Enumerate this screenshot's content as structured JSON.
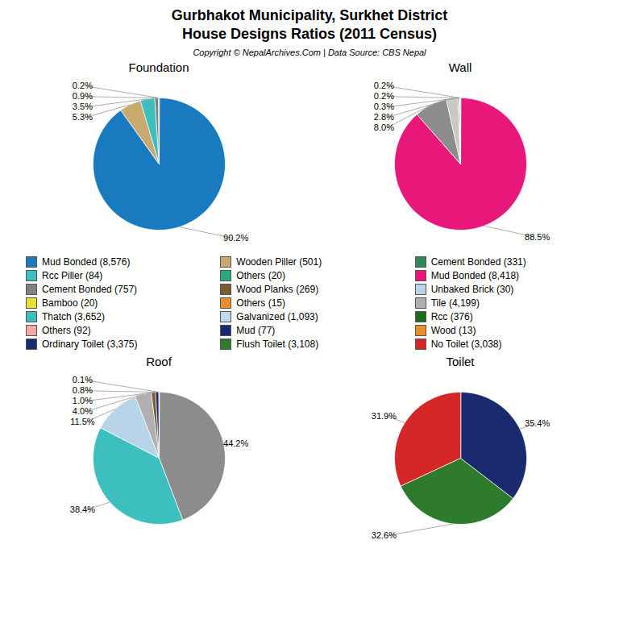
{
  "title": "Gurbhakot Municipality, Surkhet District\nHouse Designs Ratios (2011 Census)",
  "subtitle": "Copyright © NepalArchives.Com | Data Source: CBS Nepal",
  "legend_entries": [
    {
      "label": "Mud Bonded (8,576)",
      "color": "#1a7abf"
    },
    {
      "label": "Wooden Piller (501)",
      "color": "#c8a96e"
    },
    {
      "label": "Cement Bonded (331)",
      "color": "#2e8b57"
    },
    {
      "label": "Rcc Piller (84)",
      "color": "#3dbfbf"
    },
    {
      "label": "Others (20)",
      "color": "#2aaa7a"
    },
    {
      "label": "Mud Bonded (8,418)",
      "color": "#e8177a"
    },
    {
      "label": "Cement Bonded (757)",
      "color": "#808080"
    },
    {
      "label": "Wood Planks (269)",
      "color": "#7b5c2e"
    },
    {
      "label": "Unbaked Brick (30)",
      "color": "#b8d4e8"
    },
    {
      "label": "Bamboo (20)",
      "color": "#e8e030"
    },
    {
      "label": "Others (15)",
      "color": "#e89030"
    },
    {
      "label": "Tile (4,199)",
      "color": "#b0b0b0"
    },
    {
      "label": "Thatch (3,652)",
      "color": "#3dbfbf"
    },
    {
      "label": "Galvanized (1,093)",
      "color": "#c0d8f0"
    },
    {
      "label": "Rcc (376)",
      "color": "#1a6b1a"
    },
    {
      "label": "Others (92)",
      "color": "#f0a8a8"
    },
    {
      "label": "Mud (77)",
      "color": "#1a2a6e"
    },
    {
      "label": "Wood (13)",
      "color": "#e89030"
    },
    {
      "label": "Ordinary Toilet (3,375)",
      "color": "#1a2a6e"
    },
    {
      "label": "Flush Toilet (3,108)",
      "color": "#2e7b2e"
    },
    {
      "label": "No Toilet (3,038)",
      "color": "#d62728"
    }
  ],
  "chart_data": [
    {
      "type": "pie",
      "title": "Foundation",
      "values": [
        90.2,
        5.3,
        3.5,
        0.9,
        0.2
      ],
      "value_labels": [
        "90.2%",
        "5.3%",
        "3.5%",
        "0.9%",
        "0.2%"
      ],
      "colors": [
        "#1a7abf",
        "#c8a96e",
        "#3dbfbf",
        "#808080",
        "#2e8b57"
      ],
      "data_labels": true
    },
    {
      "type": "pie",
      "title": "Wall",
      "values": [
        88.5,
        8.0,
        2.8,
        0.3,
        0.2,
        0.2
      ],
      "value_labels": [
        "88.5%",
        "8.0%",
        "2.8%",
        "0.3%",
        "0.2%",
        "0.2%"
      ],
      "colors": [
        "#e8177a",
        "#8c8c8c",
        "#c8c8c8",
        "#2e8b57",
        "#c8a96e",
        "#3dbfbf"
      ],
      "data_labels": true
    },
    {
      "type": "pie",
      "title": "Roof",
      "values": [
        44.2,
        38.4,
        11.5,
        4.0,
        1.0,
        0.8,
        0.1
      ],
      "value_labels": [
        "44.2%",
        "38.4%",
        "11.5%",
        "4.0%",
        "1.0%",
        "0.8%",
        "0.1%"
      ],
      "colors": [
        "#8c8c8c",
        "#3dbfbf",
        "#b8d4e8",
        "#b0b0b0",
        "#7b5c2e",
        "#1a2a6e",
        "#e8a0a0"
      ],
      "data_labels": true
    },
    {
      "type": "pie",
      "title": "Toilet",
      "values": [
        35.4,
        32.6,
        31.9
      ],
      "value_labels": [
        "35.4%",
        "32.6%",
        "31.9%"
      ],
      "colors": [
        "#1a2a6e",
        "#2e7b2e",
        "#d62728"
      ],
      "data_labels": true
    }
  ]
}
